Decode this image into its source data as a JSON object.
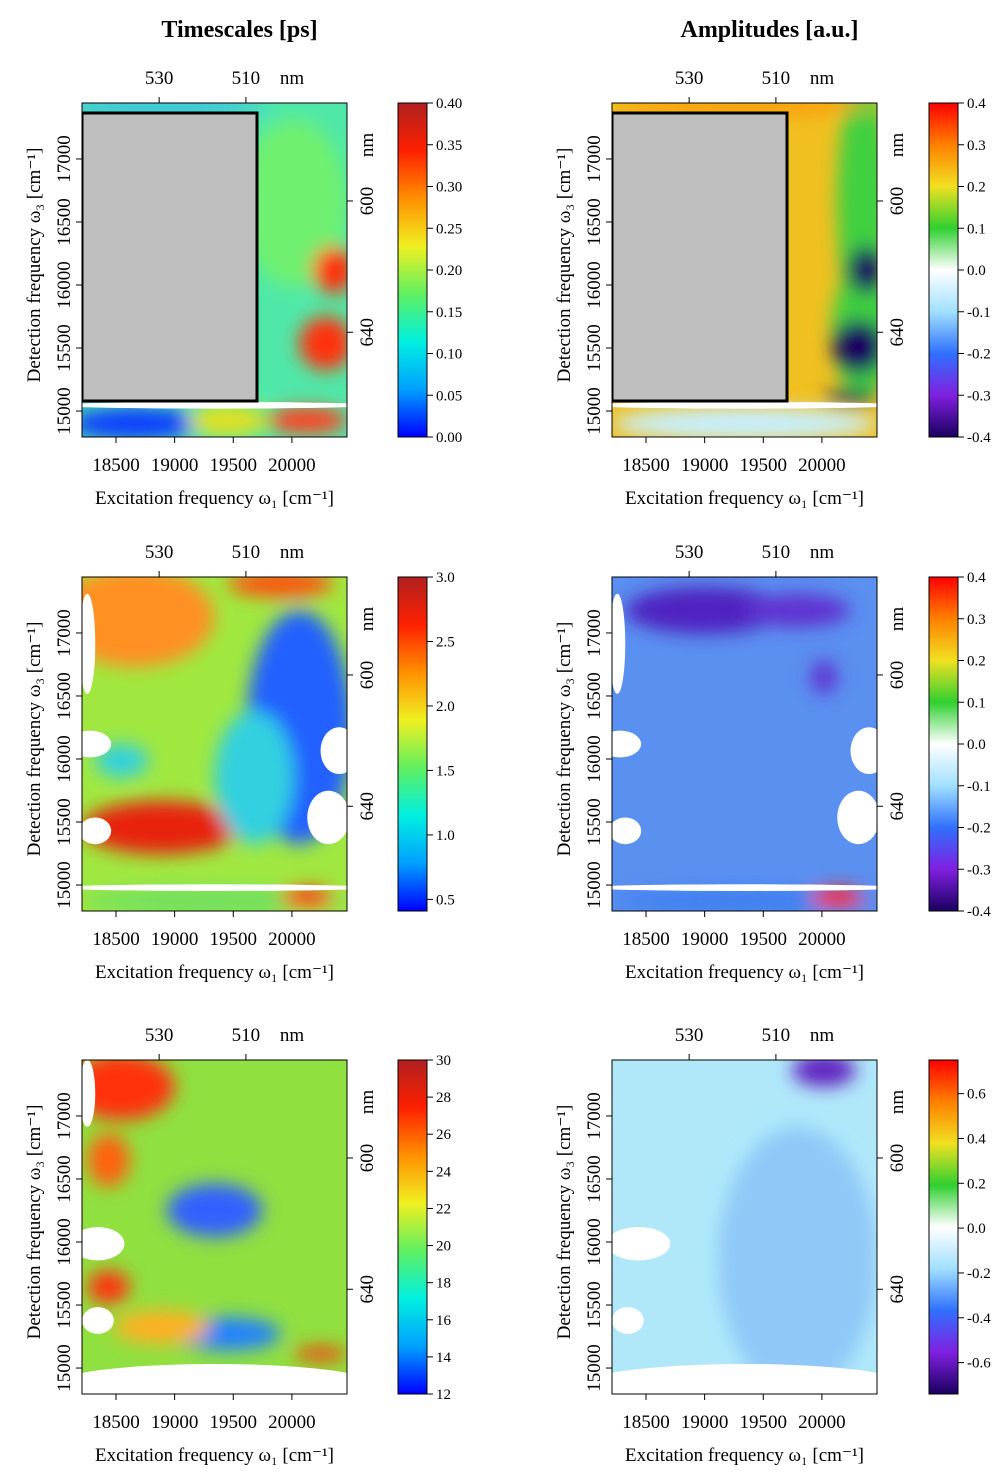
{
  "chart_data": [
    {
      "type": "heatmap",
      "title": "Timescales [ps]",
      "xlabel": "Excitation frequency ω₁ [cm⁻¹]",
      "ylabel": "Detection frequency ω₃ [cm⁻¹]",
      "xlim": [
        18210,
        20470
      ],
      "ylim": [
        14794,
        17444
      ],
      "xticks": [
        18500,
        19000,
        19500,
        20000
      ],
      "yticks": [
        15000,
        15500,
        16000,
        16500,
        17000
      ],
      "top_ticks": [
        530,
        510
      ],
      "top_unit": "nm",
      "right_ticks": [
        600,
        640
      ],
      "right_unit": "nm",
      "colorbar_lim": [
        0,
        0.4
      ],
      "colorbar_ticks": [
        {
          "value": 0,
          "label": "0.00"
        },
        {
          "value": 0.05,
          "label": "0.05"
        },
        {
          "value": 0.1,
          "label": "0.10"
        },
        {
          "value": 0.15,
          "label": "0.15"
        },
        {
          "value": 0.2,
          "label": "0.20"
        },
        {
          "value": 0.25,
          "label": "0.25"
        },
        {
          "value": 0.3,
          "label": "0.30"
        },
        {
          "value": 0.35,
          "label": "0.35"
        },
        {
          "value": 0.4,
          "label": "0.40"
        }
      ],
      "colormap": [
        "#0000ff",
        "#00a0ff",
        "#00f0e0",
        "#60f060",
        "#f0f020",
        "#ff9000",
        "#ff2000",
        "#b02020"
      ]
    },
    {
      "type": "heatmap",
      "title": "Amplitudes [a.u.]",
      "xlabel": "Excitation frequency ω₁ [cm⁻¹]",
      "ylabel": "Detection frequency ω₃ [cm⁻¹]",
      "xlim": [
        18210,
        20470
      ],
      "ylim": [
        14794,
        17444
      ],
      "xticks": [
        18500,
        19000,
        19500,
        20000
      ],
      "yticks": [
        15000,
        15500,
        16000,
        16500,
        17000
      ],
      "top_ticks": [
        530,
        510
      ],
      "top_unit": "nm",
      "right_ticks": [
        600,
        640
      ],
      "right_unit": "nm",
      "colorbar_lim": [
        -0.4,
        0.4
      ],
      "colorbar_ticks": [
        -0.4,
        -0.3,
        -0.2,
        -0.1,
        {
          "value": 0,
          "label": "0.0"
        },
        0.1,
        0.2,
        0.3,
        0.4
      ],
      "colormap": [
        "#1a0060",
        "#8020e0",
        "#3070ff",
        "#a0e0ff",
        "#ffffff",
        "#30d030",
        "#f0e020",
        "#ff8000",
        "#ff0000"
      ]
    },
    {
      "type": "heatmap",
      "xlabel": "Excitation frequency ω₁ [cm⁻¹]",
      "ylabel": "Detection frequency ω₃ [cm⁻¹]",
      "xlim": [
        18210,
        20470
      ],
      "ylim": [
        14794,
        17444
      ],
      "xticks": [
        18500,
        19000,
        19500,
        20000
      ],
      "yticks": [
        15000,
        15500,
        16000,
        16500,
        17000
      ],
      "top_ticks": [
        530,
        510
      ],
      "top_unit": "nm",
      "right_ticks": [
        600,
        640
      ],
      "right_unit": "nm",
      "colorbar_lim": [
        0.41,
        3.0
      ],
      "colorbar_ticks": [
        0.5,
        {
          "value": 1,
          "label": "1.0"
        },
        1.5,
        {
          "value": 2,
          "label": "2.0"
        },
        2.5,
        {
          "value": 3,
          "label": "3.0"
        }
      ],
      "colormap": [
        "#0000ff",
        "#00a0ff",
        "#00f0e0",
        "#60f060",
        "#f0f020",
        "#ff9000",
        "#ff2000",
        "#b02020"
      ]
    },
    {
      "type": "heatmap",
      "xlabel": "Excitation frequency ω₁ [cm⁻¹]",
      "ylabel": "Detection frequency ω₃ [cm⁻¹]",
      "xlim": [
        18210,
        20470
      ],
      "ylim": [
        14794,
        17444
      ],
      "xticks": [
        18500,
        19000,
        19500,
        20000
      ],
      "yticks": [
        15000,
        15500,
        16000,
        16500,
        17000
      ],
      "top_ticks": [
        530,
        510
      ],
      "top_unit": "nm",
      "right_ticks": [
        600,
        640
      ],
      "right_unit": "nm",
      "colorbar_lim": [
        -0.4,
        0.4
      ],
      "colorbar_ticks": [
        -0.4,
        -0.3,
        -0.2,
        -0.1,
        {
          "value": 0,
          "label": "0.0"
        },
        0.1,
        0.2,
        0.3,
        0.4
      ],
      "colormap": [
        "#1a0060",
        "#8020e0",
        "#3070ff",
        "#a0e0ff",
        "#ffffff",
        "#30d030",
        "#f0e020",
        "#ff8000",
        "#ff0000"
      ]
    },
    {
      "type": "heatmap",
      "xlabel": "Excitation frequency ω₁ [cm⁻¹]",
      "ylabel": "Detection frequency ω₃ [cm⁻¹]",
      "xlim": [
        18210,
        20470
      ],
      "ylim": [
        14794,
        17444
      ],
      "xticks": [
        18500,
        19000,
        19500,
        20000
      ],
      "yticks": [
        15000,
        15500,
        16000,
        16500,
        17000
      ],
      "top_ticks": [
        530,
        510
      ],
      "top_unit": "nm",
      "right_ticks": [
        600,
        640
      ],
      "right_unit": "nm",
      "colorbar_lim": [
        12,
        30
      ],
      "colorbar_ticks": [
        12,
        14,
        16,
        18,
        20,
        22,
        24,
        26,
        28,
        30
      ],
      "colormap": [
        "#0000ff",
        "#00a0ff",
        "#00f0e0",
        "#60f060",
        "#f0f020",
        "#ff9000",
        "#ff2000",
        "#b02020"
      ]
    },
    {
      "type": "heatmap",
      "xlabel": "Excitation frequency ω₁ [cm⁻¹]",
      "ylabel": "Detection frequency ω₃ [cm⁻¹]",
      "xlim": [
        18210,
        20470
      ],
      "ylim": [
        14794,
        17444
      ],
      "xticks": [
        18500,
        19000,
        19500,
        20000
      ],
      "yticks": [
        15000,
        15500,
        16000,
        16500,
        17000
      ],
      "top_ticks": [
        530,
        510
      ],
      "top_unit": "nm",
      "right_ticks": [
        600,
        640
      ],
      "right_unit": "nm",
      "colorbar_lim": [
        -0.74,
        0.75
      ],
      "colorbar_ticks": [
        -0.6,
        -0.4,
        -0.2,
        {
          "value": 0,
          "label": "0.0"
        },
        0.2,
        0.4,
        0.6
      ],
      "colormap": [
        "#1a0060",
        "#8020e0",
        "#3070ff",
        "#a0e0ff",
        "#ffffff",
        "#30d030",
        "#f0e020",
        "#ff8000",
        "#ff0000"
      ]
    }
  ]
}
